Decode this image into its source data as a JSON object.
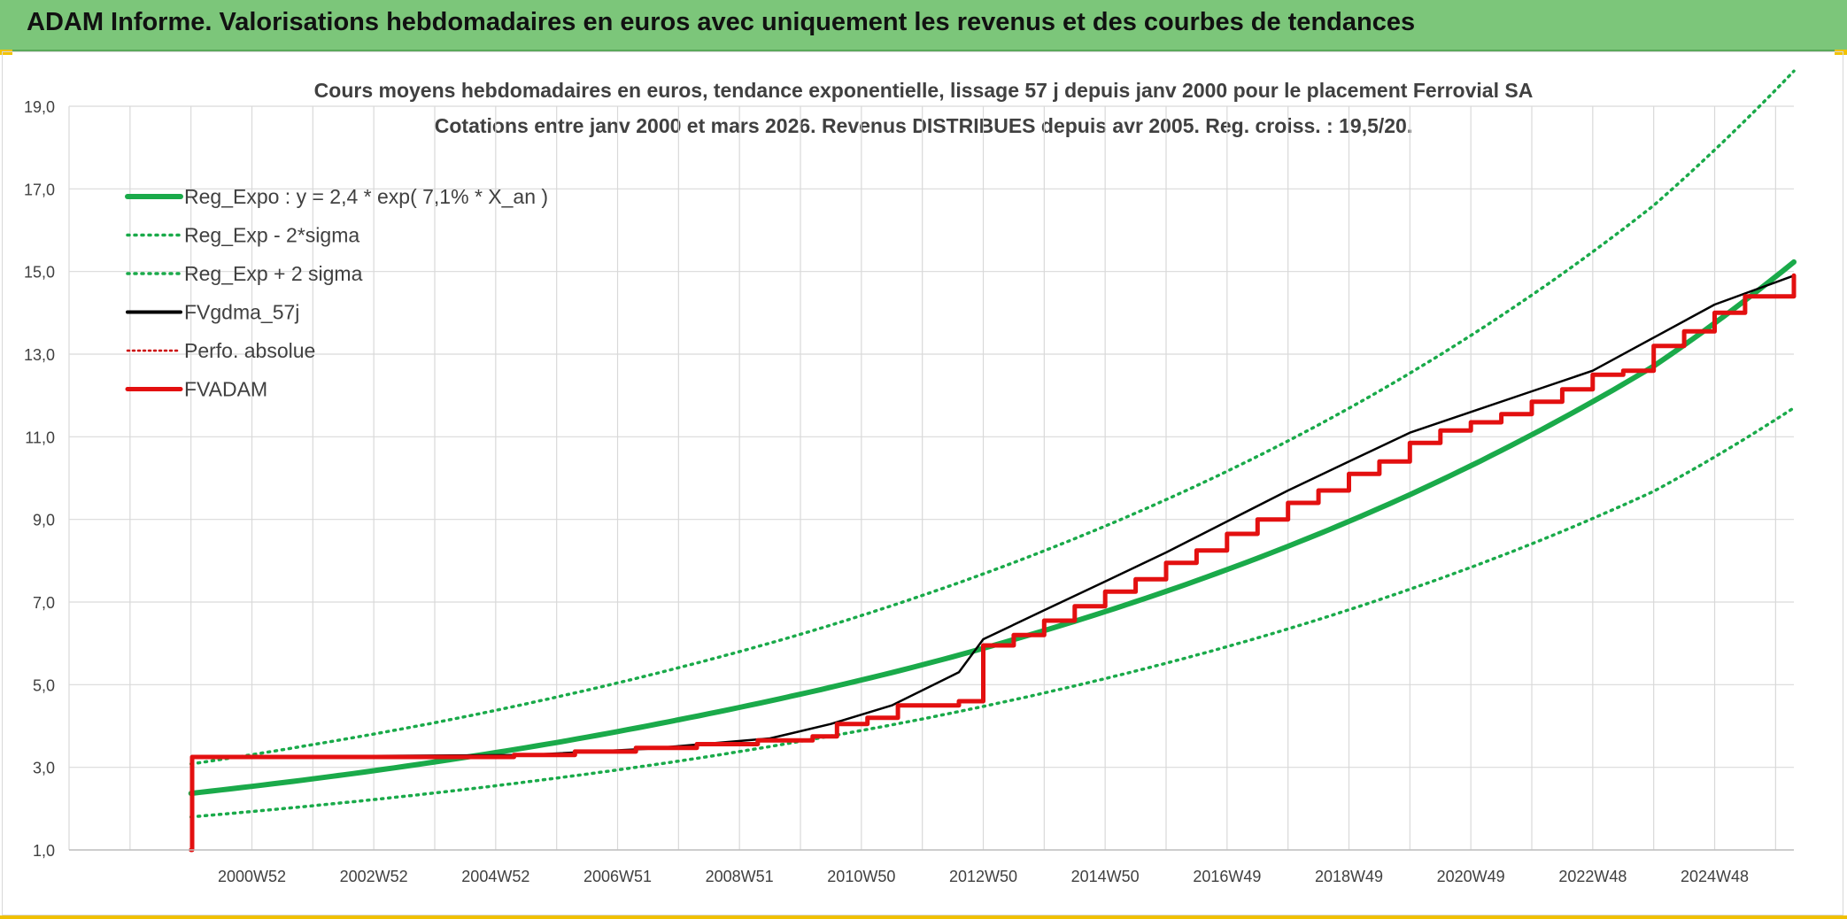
{
  "header": {
    "title": "ADAM Informe. Valorisations hebdomadaires en euros avec uniquement les revenus et des courbes de tendances"
  },
  "colors": {
    "banner": "#7cc67a",
    "reg_expo": "#1aaa4a",
    "fvgdma": "#000000",
    "perfo": "#cc0000",
    "fvadam": "#e31010",
    "grid": "#d9d9d9",
    "text": "#404040"
  },
  "chart_data": {
    "type": "line",
    "title_line1": "Cours moyens hebdomadaires en euros, tendance exponentielle, lissage 57 j depuis janv 2000 pour le placement Ferrovial SA",
    "title_line2": "Cotations entre janv 2000 et mars 2026. Revenus DISTRIBUES depuis avr 2005. Reg. croiss. : 19,5/20.",
    "xlabel": "",
    "ylabel": "",
    "ylim": [
      1.0,
      19.0
    ],
    "xlim": [
      1998.0,
      2026.3
    ],
    "yticks": [
      "1,0",
      "3,0",
      "5,0",
      "7,0",
      "9,0",
      "11,0",
      "13,0",
      "15,0",
      "17,0",
      "19,0"
    ],
    "ytick_values": [
      1,
      3,
      5,
      7,
      9,
      11,
      13,
      15,
      17,
      19
    ],
    "xticks": [
      "2000W52",
      "2002W52",
      "2004W52",
      "2006W51",
      "2008W51",
      "2010W50",
      "2012W50",
      "2014W50",
      "2016W49",
      "2018W49",
      "2020W49",
      "2022W48",
      "2024W48"
    ],
    "xtick_values": [
      2001.0,
      2003.0,
      2005.0,
      2007.0,
      2009.0,
      2011.0,
      2013.0,
      2015.0,
      2017.0,
      2019.0,
      2021.0,
      2023.0,
      2025.0
    ],
    "grid": true,
    "legend_position": "top-left",
    "legend": [
      "Reg_Expo : y = 2,4 * exp( 7,1% *  X_an )",
      "Reg_Exp - 2*sigma",
      "Reg_Exp + 2 sigma",
      "FVgdma_57j",
      "Perfo. absolue",
      "FVADAM"
    ],
    "series": [
      {
        "name": "Reg_Expo : y = 2,4 * exp( 7,1% *  X_an )",
        "style": "solid-thick",
        "color": "#1aaa4a",
        "x": [
          2000.0,
          2002.0,
          2004.0,
          2006.0,
          2008.0,
          2010.0,
          2012.0,
          2014.0,
          2016.0,
          2018.0,
          2020.0,
          2022.0,
          2024.0,
          2026.3
        ],
        "y": [
          2.37,
          2.72,
          3.13,
          3.6,
          4.15,
          4.77,
          5.48,
          6.31,
          7.26,
          8.35,
          9.6,
          11.05,
          12.71,
          15.23
        ]
      },
      {
        "name": "Reg_Exp - 2*sigma",
        "style": "dotted",
        "color": "#1aaa4a",
        "x": [
          2000.0,
          2002.0,
          2004.0,
          2006.0,
          2008.0,
          2010.0,
          2012.0,
          2014.0,
          2016.0,
          2018.0,
          2020.0,
          2022.0,
          2024.0,
          2026.3
        ],
        "y": [
          1.8,
          2.07,
          2.38,
          2.74,
          3.15,
          3.63,
          4.17,
          4.8,
          5.52,
          6.35,
          7.31,
          8.41,
          9.68,
          11.7
        ]
      },
      {
        "name": "Reg_Exp + 2 sigma",
        "style": "dotted",
        "color": "#1aaa4a",
        "x": [
          2000.0,
          2002.0,
          2004.0,
          2006.0,
          2008.0,
          2010.0,
          2012.0,
          2014.0,
          2016.0,
          2018.0,
          2020.0,
          2022.0,
          2024.0,
          2026.3
        ],
        "y": [
          3.08,
          3.55,
          4.08,
          4.7,
          5.41,
          6.22,
          7.16,
          8.24,
          9.48,
          10.9,
          12.54,
          14.43,
          16.6,
          19.85
        ]
      },
      {
        "name": "FVgdma_57j",
        "style": "solid-thin",
        "color": "#000000",
        "x": [
          2000.0,
          2000.02,
          2005.5,
          2007.5,
          2009.5,
          2010.5,
          2011.5,
          2012.6,
          2013.0,
          2014.0,
          2015.0,
          2016.0,
          2017.0,
          2018.0,
          2019.0,
          2020.0,
          2021.0,
          2022.0,
          2023.0,
          2024.0,
          2025.0,
          2026.3
        ],
        "y": [
          1.0,
          3.25,
          3.3,
          3.45,
          3.7,
          4.05,
          4.5,
          5.3,
          6.1,
          6.8,
          7.5,
          8.2,
          8.95,
          9.7,
          10.4,
          11.1,
          11.6,
          12.1,
          12.6,
          13.4,
          14.2,
          14.9
        ]
      },
      {
        "name": "FVADAM",
        "style": "step-thick",
        "color": "#e31010",
        "x": [
          2000.0,
          2000.02,
          2005.3,
          2006.3,
          2007.3,
          2008.3,
          2009.3,
          2010.2,
          2010.6,
          2011.1,
          2011.6,
          2012.6,
          2013.0,
          2013.5,
          2014.0,
          2014.5,
          2015.0,
          2015.5,
          2016.0,
          2016.5,
          2017.0,
          2017.5,
          2018.0,
          2018.5,
          2019.0,
          2019.5,
          2020.0,
          2020.5,
          2021.0,
          2021.5,
          2022.0,
          2022.5,
          2023.0,
          2023.5,
          2024.0,
          2024.5,
          2025.0,
          2025.5,
          2026.3
        ],
        "y": [
          1.0,
          3.25,
          3.3,
          3.38,
          3.47,
          3.56,
          3.65,
          3.75,
          4.05,
          4.2,
          4.5,
          4.6,
          5.95,
          6.2,
          6.55,
          6.9,
          7.25,
          7.55,
          7.95,
          8.25,
          8.65,
          9.0,
          9.4,
          9.7,
          10.1,
          10.4,
          10.85,
          11.15,
          11.35,
          11.55,
          11.85,
          12.15,
          12.5,
          12.6,
          13.2,
          13.55,
          14.0,
          14.4,
          14.9
        ]
      }
    ]
  }
}
